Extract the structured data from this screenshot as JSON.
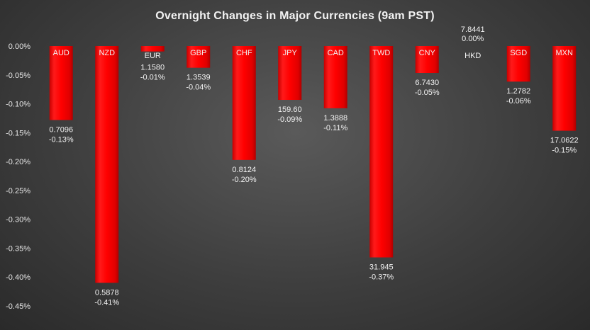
{
  "chart_data": {
    "type": "bar",
    "title": "Overnight Changes in Major Currencies (9am PST)",
    "xlabel": "",
    "ylabel": "",
    "ylim": [
      -0.45,
      0
    ],
    "ytick_labels": [
      "0.00%",
      "-0.05%",
      "-0.10%",
      "-0.15%",
      "-0.20%",
      "-0.25%",
      "-0.30%",
      "-0.35%",
      "-0.40%",
      "-0.45%"
    ],
    "categories": [
      "AUD",
      "NZD",
      "EUR",
      "GBP",
      "CHF",
      "JPY",
      "CAD",
      "TWD",
      "CNY",
      "HKD",
      "SGD",
      "MXN"
    ],
    "values": [
      -0.1281,
      -0.41,
      -0.0094,
      -0.0376,
      -0.1972,
      -0.0932,
      -0.1077,
      -0.366,
      -0.0466,
      0.0,
      -0.0616,
      -0.1466
    ],
    "rates": [
      "0.7096",
      "0.5878",
      "1.1580",
      "1.3539",
      "0.8124",
      "159.60",
      "1.3888",
      "31.945",
      "6.7430",
      "7.8441",
      "1.2782",
      "17.0622"
    ],
    "pct_labels": [
      "-0.13%",
      "-0.41%",
      "-0.01%",
      "-0.04%",
      "-0.20%",
      "-0.09%",
      "-0.11%",
      "-0.37%",
      "-0.05%",
      "0.00%",
      "-0.06%",
      "-0.15%"
    ],
    "bar_color": "#ff0000",
    "grid": false,
    "legend": "none"
  }
}
